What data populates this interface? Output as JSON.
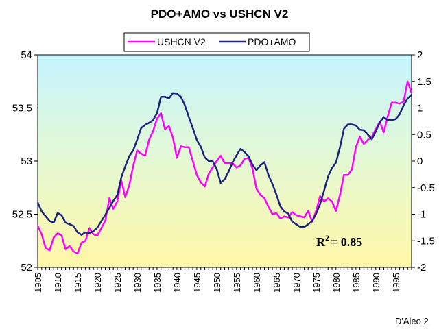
{
  "chart_data": {
    "type": "line",
    "title": "PDO+AMO vs USHCN V2",
    "x": [
      1905,
      1906,
      1907,
      1908,
      1909,
      1910,
      1911,
      1912,
      1913,
      1914,
      1915,
      1916,
      1917,
      1918,
      1919,
      1920,
      1921,
      1922,
      1923,
      1924,
      1925,
      1926,
      1927,
      1928,
      1929,
      1930,
      1931,
      1932,
      1933,
      1934,
      1935,
      1936,
      1937,
      1938,
      1939,
      1940,
      1941,
      1942,
      1943,
      1944,
      1945,
      1946,
      1947,
      1948,
      1949,
      1950,
      1951,
      1952,
      1953,
      1954,
      1955,
      1956,
      1957,
      1958,
      1959,
      1960,
      1961,
      1962,
      1963,
      1964,
      1965,
      1966,
      1967,
      1968,
      1969,
      1970,
      1971,
      1972,
      1973,
      1974,
      1975,
      1976,
      1977,
      1978,
      1979,
      1980,
      1981,
      1982,
      1983,
      1984,
      1985,
      1986,
      1987,
      1988,
      1989,
      1990,
      1991,
      1992,
      1993,
      1994,
      1995,
      1996,
      1997,
      1998,
      1999
    ],
    "series": [
      {
        "name": "USHCN V2",
        "axis": "left",
        "color": "#ff00ff",
        "values": [
          52.39,
          52.31,
          52.18,
          52.16,
          52.28,
          52.32,
          52.3,
          52.17,
          52.2,
          52.15,
          52.13,
          52.23,
          52.25,
          52.37,
          52.31,
          52.3,
          52.37,
          52.44,
          52.65,
          52.55,
          52.62,
          52.82,
          52.66,
          52.77,
          52.95,
          53.1,
          53.07,
          53.05,
          53.2,
          53.28,
          53.4,
          53.45,
          53.3,
          53.33,
          53.22,
          53.03,
          53.14,
          53.13,
          53.13,
          53.0,
          52.87,
          52.8,
          52.76,
          52.88,
          52.94,
          53.0,
          53.05,
          52.98,
          52.98,
          52.98,
          52.94,
          52.96,
          53.02,
          53.03,
          52.93,
          52.74,
          52.68,
          52.65,
          52.57,
          52.5,
          52.51,
          52.46,
          52.48,
          52.47,
          52.52,
          52.49,
          52.48,
          52.47,
          52.53,
          52.43,
          52.53,
          52.67,
          52.62,
          52.65,
          52.62,
          52.53,
          52.68,
          52.87,
          52.87,
          52.92,
          53.13,
          53.23,
          53.16,
          53.2,
          53.23,
          53.3,
          53.37,
          53.27,
          53.42,
          53.55,
          53.55,
          53.54,
          53.56,
          53.75,
          53.64
        ]
      },
      {
        "name": "PDO+AMO",
        "axis": "right",
        "color": "#1a237e",
        "values": [
          -0.78,
          -0.95,
          -1.04,
          -1.13,
          -1.16,
          -0.98,
          -1.02,
          -1.16,
          -1.19,
          -1.22,
          -1.34,
          -1.39,
          -1.34,
          -1.36,
          -1.32,
          -1.25,
          -1.13,
          -1.01,
          -0.88,
          -0.75,
          -0.64,
          -0.31,
          -0.1,
          0.09,
          0.2,
          0.4,
          0.62,
          0.68,
          0.72,
          0.77,
          0.9,
          1.21,
          1.21,
          1.18,
          1.28,
          1.27,
          1.21,
          1.05,
          0.83,
          0.62,
          0.4,
          0.27,
          0.07,
          0.0,
          0.0,
          -0.15,
          -0.41,
          -0.34,
          -0.2,
          -0.02,
          0.11,
          0.23,
          0.17,
          0.09,
          -0.07,
          -0.17,
          -0.08,
          -0.02,
          -0.26,
          -0.43,
          -0.63,
          -0.85,
          -0.95,
          -0.99,
          -1.14,
          -1.19,
          -1.24,
          -1.24,
          -1.19,
          -1.13,
          -0.99,
          -0.81,
          -0.56,
          -0.29,
          -0.13,
          -0.03,
          0.26,
          0.61,
          0.69,
          0.69,
          0.67,
          0.59,
          0.58,
          0.5,
          0.41,
          0.56,
          0.73,
          0.83,
          0.77,
          0.77,
          0.79,
          0.88,
          1.05,
          1.18,
          1.25
        ]
      }
    ],
    "ylim_left": [
      52,
      54
    ],
    "ylim_right": [
      -2,
      2
    ],
    "left_ticks": [
      "52",
      "52.5",
      "53",
      "53.5",
      "54"
    ],
    "right_ticks": [
      "-2",
      "-1.5",
      "-1",
      "-0.5",
      "0",
      "0.5",
      "1",
      "1.5",
      "2"
    ],
    "xlim": [
      1905,
      1999
    ],
    "x_ticks": [
      "1905",
      "1910",
      "1915",
      "1920",
      "1925",
      "1930",
      "1935",
      "1940",
      "1945",
      "1950",
      "1955",
      "1960",
      "1965",
      "1970",
      "1975",
      "1980",
      "1985",
      "1990",
      "1995"
    ],
    "legend_placement": "top-center",
    "grid": false,
    "annotation_r2_prefix": "R",
    "annotation_r2_exp": "2",
    "annotation_r2_value": "= 0.85",
    "background_gradient": [
      "#c4f4ff",
      "#fff7a6"
    ],
    "credit": "D'Aleo 2"
  }
}
